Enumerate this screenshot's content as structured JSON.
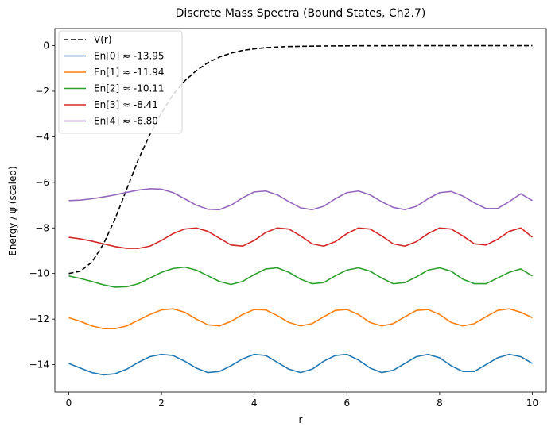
{
  "chart_data": {
    "type": "line",
    "title": "Discrete Mass Spectra (Bound States, Ch2.7)",
    "xlabel": "r",
    "ylabel": "Energy / ψ (scaled)",
    "xlim": [
      -0.3,
      10.3
    ],
    "ylim": [
      -15.2,
      0.75
    ],
    "xticks": [
      0,
      2,
      4,
      6,
      8,
      10
    ],
    "xtick_labels": [
      "0",
      "2",
      "4",
      "6",
      "8",
      "10"
    ],
    "yticks": [
      0,
      -2,
      -4,
      -6,
      -8,
      -10,
      -12,
      -14
    ],
    "ytick_labels": [
      "0",
      "−2",
      "−4",
      "−6",
      "−8",
      "−10",
      "−12",
      "−14"
    ],
    "grid": false,
    "legend_position": "top-left",
    "potential": {
      "name": "V(r)",
      "color": "#000000",
      "dashed": true,
      "x": [
        0,
        0.25,
        0.5,
        0.75,
        1.0,
        1.25,
        1.5,
        1.75,
        2.0,
        2.25,
        2.5,
        2.75,
        3.0,
        3.25,
        3.5,
        3.75,
        4.0,
        4.25,
        4.5,
        4.75,
        5.0,
        5.5,
        6.0,
        7.0,
        8.0,
        9.0,
        10.0
      ],
      "y": [
        -10.0,
        -9.9,
        -9.5,
        -8.7,
        -7.6,
        -6.3,
        -5.0,
        -3.9,
        -2.95,
        -2.15,
        -1.55,
        -1.1,
        -0.75,
        -0.5,
        -0.33,
        -0.21,
        -0.14,
        -0.09,
        -0.06,
        -0.04,
        -0.03,
        -0.015,
        -0.008,
        -0.003,
        -0.001,
        0.0,
        0.0
      ]
    },
    "series": [
      {
        "name": "En[0] ≈ -13.95",
        "color": "#1f77b4",
        "x": [
          0,
          0.25,
          0.5,
          0.75,
          1.0,
          1.25,
          1.5,
          1.75,
          2.0,
          2.25,
          2.5,
          2.75,
          3.0,
          3.25,
          3.5,
          3.75,
          4.0,
          4.25,
          4.5,
          4.75,
          5.0,
          5.25,
          5.5,
          5.75,
          6.0,
          6.25,
          6.5,
          6.75,
          7.0,
          7.25,
          7.5,
          7.75,
          8.0,
          8.25,
          8.5,
          8.75,
          9.0,
          9.25,
          9.5,
          9.75,
          10.0
        ],
        "y": [
          -13.95,
          -14.15,
          -14.35,
          -14.45,
          -14.4,
          -14.2,
          -13.9,
          -13.65,
          -13.55,
          -13.6,
          -13.85,
          -14.15,
          -14.35,
          -14.3,
          -14.05,
          -13.75,
          -13.55,
          -13.6,
          -13.9,
          -14.2,
          -14.35,
          -14.2,
          -13.85,
          -13.6,
          -13.55,
          -13.8,
          -14.15,
          -14.35,
          -14.25,
          -13.95,
          -13.65,
          -13.55,
          -13.7,
          -14.05,
          -14.3,
          -14.3,
          -14.0,
          -13.7,
          -13.55,
          -13.65,
          -13.95
        ]
      },
      {
        "name": "En[1] ≈ -11.94",
        "color": "#ff7f0e",
        "x": [
          0,
          0.25,
          0.5,
          0.75,
          1.0,
          1.25,
          1.5,
          1.75,
          2.0,
          2.25,
          2.5,
          2.75,
          3.0,
          3.25,
          3.5,
          3.75,
          4.0,
          4.25,
          4.5,
          4.75,
          5.0,
          5.25,
          5.5,
          5.75,
          6.0,
          6.25,
          6.5,
          6.75,
          7.0,
          7.25,
          7.5,
          7.75,
          8.0,
          8.25,
          8.5,
          8.75,
          9.0,
          9.25,
          9.5,
          9.75,
          10.0
        ],
        "y": [
          -11.94,
          -12.1,
          -12.3,
          -12.42,
          -12.42,
          -12.3,
          -12.05,
          -11.8,
          -11.6,
          -11.55,
          -11.7,
          -12.0,
          -12.25,
          -12.3,
          -12.1,
          -11.8,
          -11.58,
          -11.6,
          -11.85,
          -12.15,
          -12.3,
          -12.2,
          -11.9,
          -11.62,
          -11.58,
          -11.8,
          -12.15,
          -12.3,
          -12.2,
          -11.9,
          -11.62,
          -11.58,
          -11.8,
          -12.15,
          -12.3,
          -12.2,
          -11.9,
          -11.62,
          -11.55,
          -11.7,
          -11.94
        ]
      },
      {
        "name": "En[2] ≈ -10.11",
        "color": "#2ca02c",
        "x": [
          0,
          0.25,
          0.5,
          0.75,
          1.0,
          1.25,
          1.5,
          1.75,
          2.0,
          2.25,
          2.5,
          2.75,
          3.0,
          3.25,
          3.5,
          3.75,
          4.0,
          4.25,
          4.5,
          4.75,
          5.0,
          5.25,
          5.5,
          5.75,
          6.0,
          6.25,
          6.5,
          6.75,
          7.0,
          7.25,
          7.5,
          7.75,
          8.0,
          8.25,
          8.5,
          8.75,
          9.0,
          9.25,
          9.5,
          9.75,
          10.0
        ],
        "y": [
          -10.11,
          -10.22,
          -10.35,
          -10.5,
          -10.6,
          -10.58,
          -10.45,
          -10.2,
          -9.95,
          -9.78,
          -9.72,
          -9.85,
          -10.1,
          -10.35,
          -10.48,
          -10.35,
          -10.05,
          -9.8,
          -9.75,
          -9.95,
          -10.25,
          -10.45,
          -10.4,
          -10.1,
          -9.85,
          -9.75,
          -9.9,
          -10.2,
          -10.45,
          -10.4,
          -10.15,
          -9.85,
          -9.75,
          -9.9,
          -10.25,
          -10.45,
          -10.45,
          -10.2,
          -9.95,
          -9.8,
          -10.11
        ]
      },
      {
        "name": "En[3] ≈ -8.41",
        "color": "#d62728",
        "x": [
          0,
          0.25,
          0.5,
          0.75,
          1.0,
          1.25,
          1.5,
          1.75,
          2.0,
          2.25,
          2.5,
          2.75,
          3.0,
          3.25,
          3.5,
          3.75,
          4.0,
          4.25,
          4.5,
          4.75,
          5.0,
          5.25,
          5.5,
          5.75,
          6.0,
          6.25,
          6.5,
          6.75,
          7.0,
          7.25,
          7.5,
          7.75,
          8.0,
          8.25,
          8.5,
          8.75,
          9.0,
          9.25,
          9.5,
          9.75,
          10.0
        ],
        "y": [
          -8.41,
          -8.48,
          -8.58,
          -8.7,
          -8.82,
          -8.9,
          -8.9,
          -8.8,
          -8.55,
          -8.25,
          -8.05,
          -8.0,
          -8.15,
          -8.45,
          -8.75,
          -8.8,
          -8.55,
          -8.2,
          -8.0,
          -8.05,
          -8.35,
          -8.7,
          -8.8,
          -8.6,
          -8.25,
          -8.0,
          -8.05,
          -8.35,
          -8.7,
          -8.8,
          -8.6,
          -8.25,
          -8.0,
          -8.05,
          -8.35,
          -8.7,
          -8.75,
          -8.5,
          -8.15,
          -8.0,
          -8.41
        ]
      },
      {
        "name": "En[4] ≈ -6.80",
        "color": "#9467bd",
        "x": [
          0,
          0.25,
          0.5,
          0.75,
          1.0,
          1.25,
          1.5,
          1.75,
          2.0,
          2.25,
          2.5,
          2.75,
          3.0,
          3.25,
          3.5,
          3.75,
          4.0,
          4.25,
          4.5,
          4.75,
          5.0,
          5.25,
          5.5,
          5.75,
          6.0,
          6.25,
          6.5,
          6.75,
          7.0,
          7.25,
          7.5,
          7.75,
          8.0,
          8.25,
          8.5,
          8.75,
          9.0,
          9.25,
          9.5,
          9.75,
          10.0
        ],
        "y": [
          -6.8,
          -6.78,
          -6.72,
          -6.64,
          -6.55,
          -6.44,
          -6.34,
          -6.28,
          -6.3,
          -6.45,
          -6.72,
          -7.0,
          -7.18,
          -7.2,
          -7.0,
          -6.68,
          -6.42,
          -6.38,
          -6.55,
          -6.85,
          -7.12,
          -7.2,
          -7.05,
          -6.72,
          -6.45,
          -6.38,
          -6.55,
          -6.85,
          -7.1,
          -7.2,
          -7.05,
          -6.72,
          -6.45,
          -6.4,
          -6.6,
          -6.9,
          -7.15,
          -7.15,
          -6.85,
          -6.5,
          -6.8
        ]
      }
    ]
  }
}
